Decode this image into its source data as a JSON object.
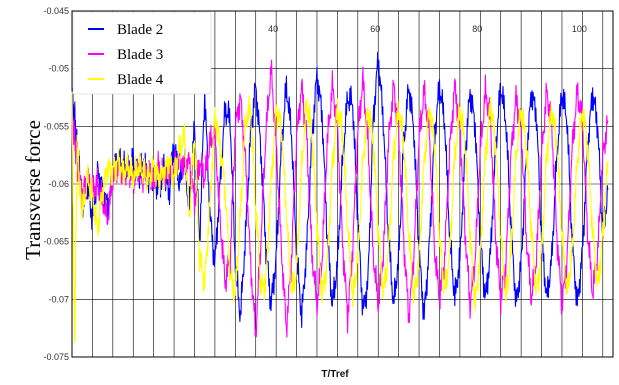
{
  "chart_data": {
    "type": "line",
    "title": "",
    "xlabel": "T/Tref",
    "ylabel": "Transverse force",
    "xlim": [
      0,
      106
    ],
    "ylim": [
      -0.075,
      -0.045
    ],
    "x_ticks": [
      40,
      60,
      80,
      100
    ],
    "x_tick_labels": [
      "40",
      "60",
      "80",
      "100"
    ],
    "y_ticks": [
      -0.045,
      -0.05,
      -0.055,
      -0.06,
      -0.065,
      -0.07,
      -0.075
    ],
    "y_tick_labels": [
      "-0.045",
      "-0.05",
      "-0.055",
      "-0.06",
      "-0.065",
      "-0.07",
      "-0.075"
    ],
    "grid": true,
    "legend_position": "top-left",
    "series": [
      {
        "name": "Blade 2",
        "color": "#0000ff",
        "x": [
          0,
          0.5,
          1,
          1.5,
          2,
          3,
          4,
          5,
          6,
          7,
          8,
          9,
          10,
          11,
          12,
          13,
          14,
          15,
          16,
          17,
          18,
          19,
          20,
          21,
          22,
          23,
          24,
          25,
          26,
          27,
          28,
          29,
          30,
          31,
          32,
          33,
          34,
          35,
          36,
          37,
          38,
          39,
          40,
          41,
          42,
          43,
          44,
          45,
          46,
          47,
          48,
          49,
          50,
          51,
          52,
          53,
          54,
          55,
          56,
          57,
          58,
          59,
          60,
          61,
          62,
          63,
          64,
          65,
          66,
          67,
          68,
          69,
          70,
          71,
          72,
          73,
          74,
          75,
          76,
          77,
          78,
          79,
          80,
          81,
          82,
          83,
          84,
          85,
          86,
          87,
          88,
          89,
          90,
          91,
          92,
          93,
          94,
          95,
          96,
          97,
          98,
          99,
          100,
          101,
          102,
          103,
          104,
          105
        ],
        "values": [
          -0.0525,
          -0.054,
          -0.057,
          -0.059,
          -0.062,
          -0.06,
          -0.063,
          -0.059,
          -0.0605,
          -0.062,
          -0.059,
          -0.058,
          -0.0585,
          -0.059,
          -0.058,
          -0.0595,
          -0.058,
          -0.0595,
          -0.059,
          -0.0605,
          -0.0585,
          -0.061,
          -0.0565,
          -0.06,
          -0.058,
          -0.062,
          -0.055,
          -0.065,
          -0.052,
          -0.0625,
          -0.067,
          -0.06,
          -0.0535,
          -0.0545,
          -0.067,
          -0.0715,
          -0.0645,
          -0.0555,
          -0.0515,
          -0.057,
          -0.0655,
          -0.0705,
          -0.0665,
          -0.057,
          -0.0515,
          -0.0555,
          -0.066,
          -0.0715,
          -0.0655,
          -0.056,
          -0.0505,
          -0.054,
          -0.0645,
          -0.0705,
          -0.067,
          -0.058,
          -0.0525,
          -0.053,
          -0.063,
          -0.071,
          -0.0685,
          -0.0545,
          -0.049,
          -0.0545,
          -0.0645,
          -0.0705,
          -0.0665,
          -0.0565,
          -0.0515,
          -0.0555,
          -0.066,
          -0.0715,
          -0.0655,
          -0.056,
          -0.0515,
          -0.0545,
          -0.0645,
          -0.07,
          -0.0665,
          -0.0575,
          -0.052,
          -0.055,
          -0.065,
          -0.07,
          -0.066,
          -0.057,
          -0.0515,
          -0.0545,
          -0.0635,
          -0.0705,
          -0.067,
          -0.058,
          -0.052,
          -0.054,
          -0.0645,
          -0.07,
          -0.0665,
          -0.0575,
          -0.052,
          -0.0545,
          -0.065,
          -0.0705,
          -0.066,
          -0.057,
          -0.052,
          -0.055,
          -0.0645,
          -0.0605
        ]
      },
      {
        "name": "Blade 3",
        "color": "#ff00ff",
        "x": [
          0,
          0.5,
          1,
          1.5,
          2,
          3,
          4,
          5,
          6,
          7,
          8,
          9,
          10,
          11,
          12,
          13,
          14,
          15,
          16,
          17,
          18,
          19,
          20,
          21,
          22,
          23,
          24,
          25,
          26,
          27,
          28,
          29,
          30,
          31,
          32,
          33,
          34,
          35,
          36,
          37,
          38,
          39,
          40,
          41,
          42,
          43,
          44,
          45,
          46,
          47,
          48,
          49,
          50,
          51,
          52,
          53,
          54,
          55,
          56,
          57,
          58,
          59,
          60,
          61,
          62,
          63,
          64,
          65,
          66,
          67,
          68,
          69,
          70,
          71,
          72,
          73,
          74,
          75,
          76,
          77,
          78,
          79,
          80,
          81,
          82,
          83,
          84,
          85,
          86,
          87,
          88,
          89,
          90,
          91,
          92,
          93,
          94,
          95,
          96,
          97,
          98,
          99,
          100,
          101,
          102,
          103,
          104,
          105
        ],
        "values": [
          -0.0545,
          -0.056,
          -0.058,
          -0.0595,
          -0.061,
          -0.0595,
          -0.0605,
          -0.06,
          -0.0615,
          -0.063,
          -0.0595,
          -0.0585,
          -0.059,
          -0.0585,
          -0.0595,
          -0.0585,
          -0.0595,
          -0.059,
          -0.06,
          -0.0585,
          -0.0595,
          -0.059,
          -0.0585,
          -0.0575,
          -0.0585,
          -0.058,
          -0.0615,
          -0.058,
          -0.0595,
          -0.0565,
          -0.0555,
          -0.063,
          -0.0685,
          -0.0665,
          -0.055,
          -0.0525,
          -0.058,
          -0.067,
          -0.073,
          -0.065,
          -0.0555,
          -0.05,
          -0.0565,
          -0.0655,
          -0.0725,
          -0.0665,
          -0.056,
          -0.0515,
          -0.056,
          -0.066,
          -0.0705,
          -0.0665,
          -0.0565,
          -0.0515,
          -0.055,
          -0.065,
          -0.0715,
          -0.0655,
          -0.0555,
          -0.051,
          -0.0565,
          -0.066,
          -0.0705,
          -0.066,
          -0.0565,
          -0.0515,
          -0.0555,
          -0.065,
          -0.0715,
          -0.066,
          -0.056,
          -0.052,
          -0.0555,
          -0.0655,
          -0.07,
          -0.0665,
          -0.057,
          -0.0515,
          -0.055,
          -0.064,
          -0.0705,
          -0.0665,
          -0.057,
          -0.052,
          -0.0545,
          -0.0645,
          -0.07,
          -0.067,
          -0.0575,
          -0.0525,
          -0.055,
          -0.0645,
          -0.07,
          -0.0665,
          -0.0575,
          -0.052,
          -0.055,
          -0.0645,
          -0.0705,
          -0.0665,
          -0.057,
          -0.052,
          -0.0545,
          -0.064,
          -0.0695,
          -0.066,
          -0.0575,
          -0.0545
        ]
      },
      {
        "name": "Blade 4",
        "color": "#ffff00",
        "x": [
          0,
          0.5,
          1,
          1.5,
          2,
          3,
          4,
          5,
          6,
          7,
          8,
          9,
          10,
          11,
          12,
          13,
          14,
          15,
          16,
          17,
          18,
          19,
          20,
          21,
          22,
          23,
          24,
          25,
          26,
          27,
          28,
          29,
          30,
          31,
          32,
          33,
          34,
          35,
          36,
          37,
          38,
          39,
          40,
          41,
          42,
          43,
          44,
          45,
          46,
          47,
          48,
          49,
          50,
          51,
          52,
          53,
          54,
          55,
          56,
          57,
          58,
          59,
          60,
          61,
          62,
          63,
          64,
          65,
          66,
          67,
          68,
          69,
          70,
          71,
          72,
          73,
          74,
          75,
          76,
          77,
          78,
          79,
          80,
          81,
          82,
          83,
          84,
          85,
          86,
          87,
          88,
          89,
          90,
          91,
          92,
          93,
          94,
          95,
          96,
          97,
          98,
          99,
          100,
          101,
          102,
          103,
          104,
          105
        ],
        "values": [
          -0.053,
          -0.0745,
          -0.056,
          -0.0605,
          -0.0625,
          -0.0595,
          -0.061,
          -0.064,
          -0.0605,
          -0.0585,
          -0.059,
          -0.058,
          -0.059,
          -0.0585,
          -0.0595,
          -0.0585,
          -0.059,
          -0.0595,
          -0.0585,
          -0.0595,
          -0.059,
          -0.058,
          -0.0595,
          -0.057,
          -0.056,
          -0.063,
          -0.0555,
          -0.0665,
          -0.0685,
          -0.062,
          -0.054,
          -0.0565,
          -0.0605,
          -0.068,
          -0.0695,
          -0.0625,
          -0.0545,
          -0.0535,
          -0.062,
          -0.069,
          -0.0685,
          -0.06,
          -0.0535,
          -0.055,
          -0.0625,
          -0.0695,
          -0.0675,
          -0.0585,
          -0.053,
          -0.0555,
          -0.0635,
          -0.0695,
          -0.067,
          -0.0585,
          -0.0535,
          -0.0555,
          -0.0635,
          -0.07,
          -0.0665,
          -0.058,
          -0.0535,
          -0.056,
          -0.064,
          -0.0695,
          -0.066,
          -0.0575,
          -0.0535,
          -0.0565,
          -0.0645,
          -0.07,
          -0.0665,
          -0.058,
          -0.0535,
          -0.056,
          -0.0645,
          -0.0695,
          -0.066,
          -0.0575,
          -0.0535,
          -0.0565,
          -0.0645,
          -0.0705,
          -0.066,
          -0.0575,
          -0.053,
          -0.0565,
          -0.0645,
          -0.07,
          -0.066,
          -0.0575,
          -0.0535,
          -0.0565,
          -0.064,
          -0.0695,
          -0.066,
          -0.0575,
          -0.0535,
          -0.0565,
          -0.0645,
          -0.0695,
          -0.066,
          -0.058,
          -0.0535,
          -0.0565,
          -0.064,
          -0.069,
          -0.0645,
          -0.058
        ]
      }
    ]
  }
}
